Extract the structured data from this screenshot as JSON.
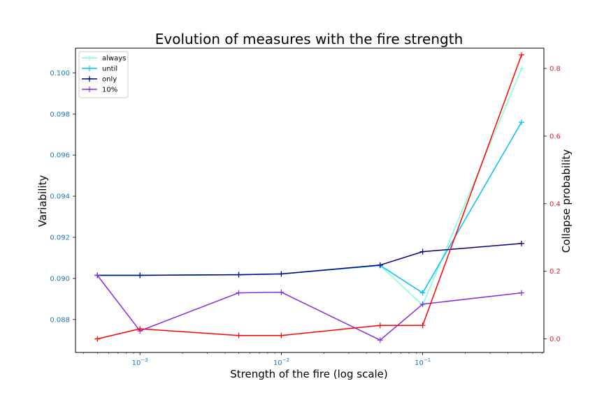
{
  "chart_data": {
    "type": "line",
    "title": "Evolution of measures with the fire strength",
    "xlabel": "Strength of the fire (log scale)",
    "ylabel_left": "Variability",
    "ylabel_right": "Collapse probability",
    "x_scale": "log",
    "x": [
      0.0005,
      0.001,
      0.005,
      0.01,
      0.05,
      0.1,
      0.5
    ],
    "x_ticks": [
      {
        "value": 0.001,
        "base": "10",
        "exp": "−3"
      },
      {
        "value": 0.01,
        "base": "10",
        "exp": "−2"
      },
      {
        "value": 0.1,
        "base": "10",
        "exp": "−1"
      }
    ],
    "ylim_left": [
      0.0864,
      0.1012
    ],
    "yticks_left": [
      "0.088",
      "0.090",
      "0.092",
      "0.094",
      "0.096",
      "0.098",
      "0.100"
    ],
    "ylim_right": [
      -0.04,
      0.86
    ],
    "yticks_right": [
      "0.0",
      "0.2",
      "0.4",
      "0.6",
      "0.8"
    ],
    "left_axis_color": "#1f77b4",
    "right_axis_color": "#d62728",
    "grid": false,
    "legend_position": "top-left",
    "series": [
      {
        "name": "always",
        "axis": "left",
        "color": "#7fffd4",
        "values": [
          0.09015,
          0.09015,
          0.09018,
          0.09022,
          0.09063,
          0.0887,
          0.1002
        ]
      },
      {
        "name": "until",
        "axis": "left",
        "color": "#00bfff",
        "values": [
          0.09015,
          0.09015,
          0.09018,
          0.09022,
          0.09063,
          0.0893,
          0.0976
        ]
      },
      {
        "name": "only",
        "axis": "left",
        "color": "#000080",
        "values": [
          0.09015,
          0.09015,
          0.09018,
          0.09022,
          0.09065,
          0.0913,
          0.0917
        ]
      },
      {
        "name": "10%",
        "axis": "left",
        "color": "#8a2be2",
        "values": [
          0.09015,
          0.08745,
          0.0893,
          0.08933,
          0.087,
          0.08875,
          0.0893
        ]
      },
      {
        "axis": "right",
        "color": "#ff0000",
        "values": [
          0.0,
          0.03,
          0.01,
          0.01,
          0.04,
          0.04,
          0.84
        ]
      }
    ]
  }
}
